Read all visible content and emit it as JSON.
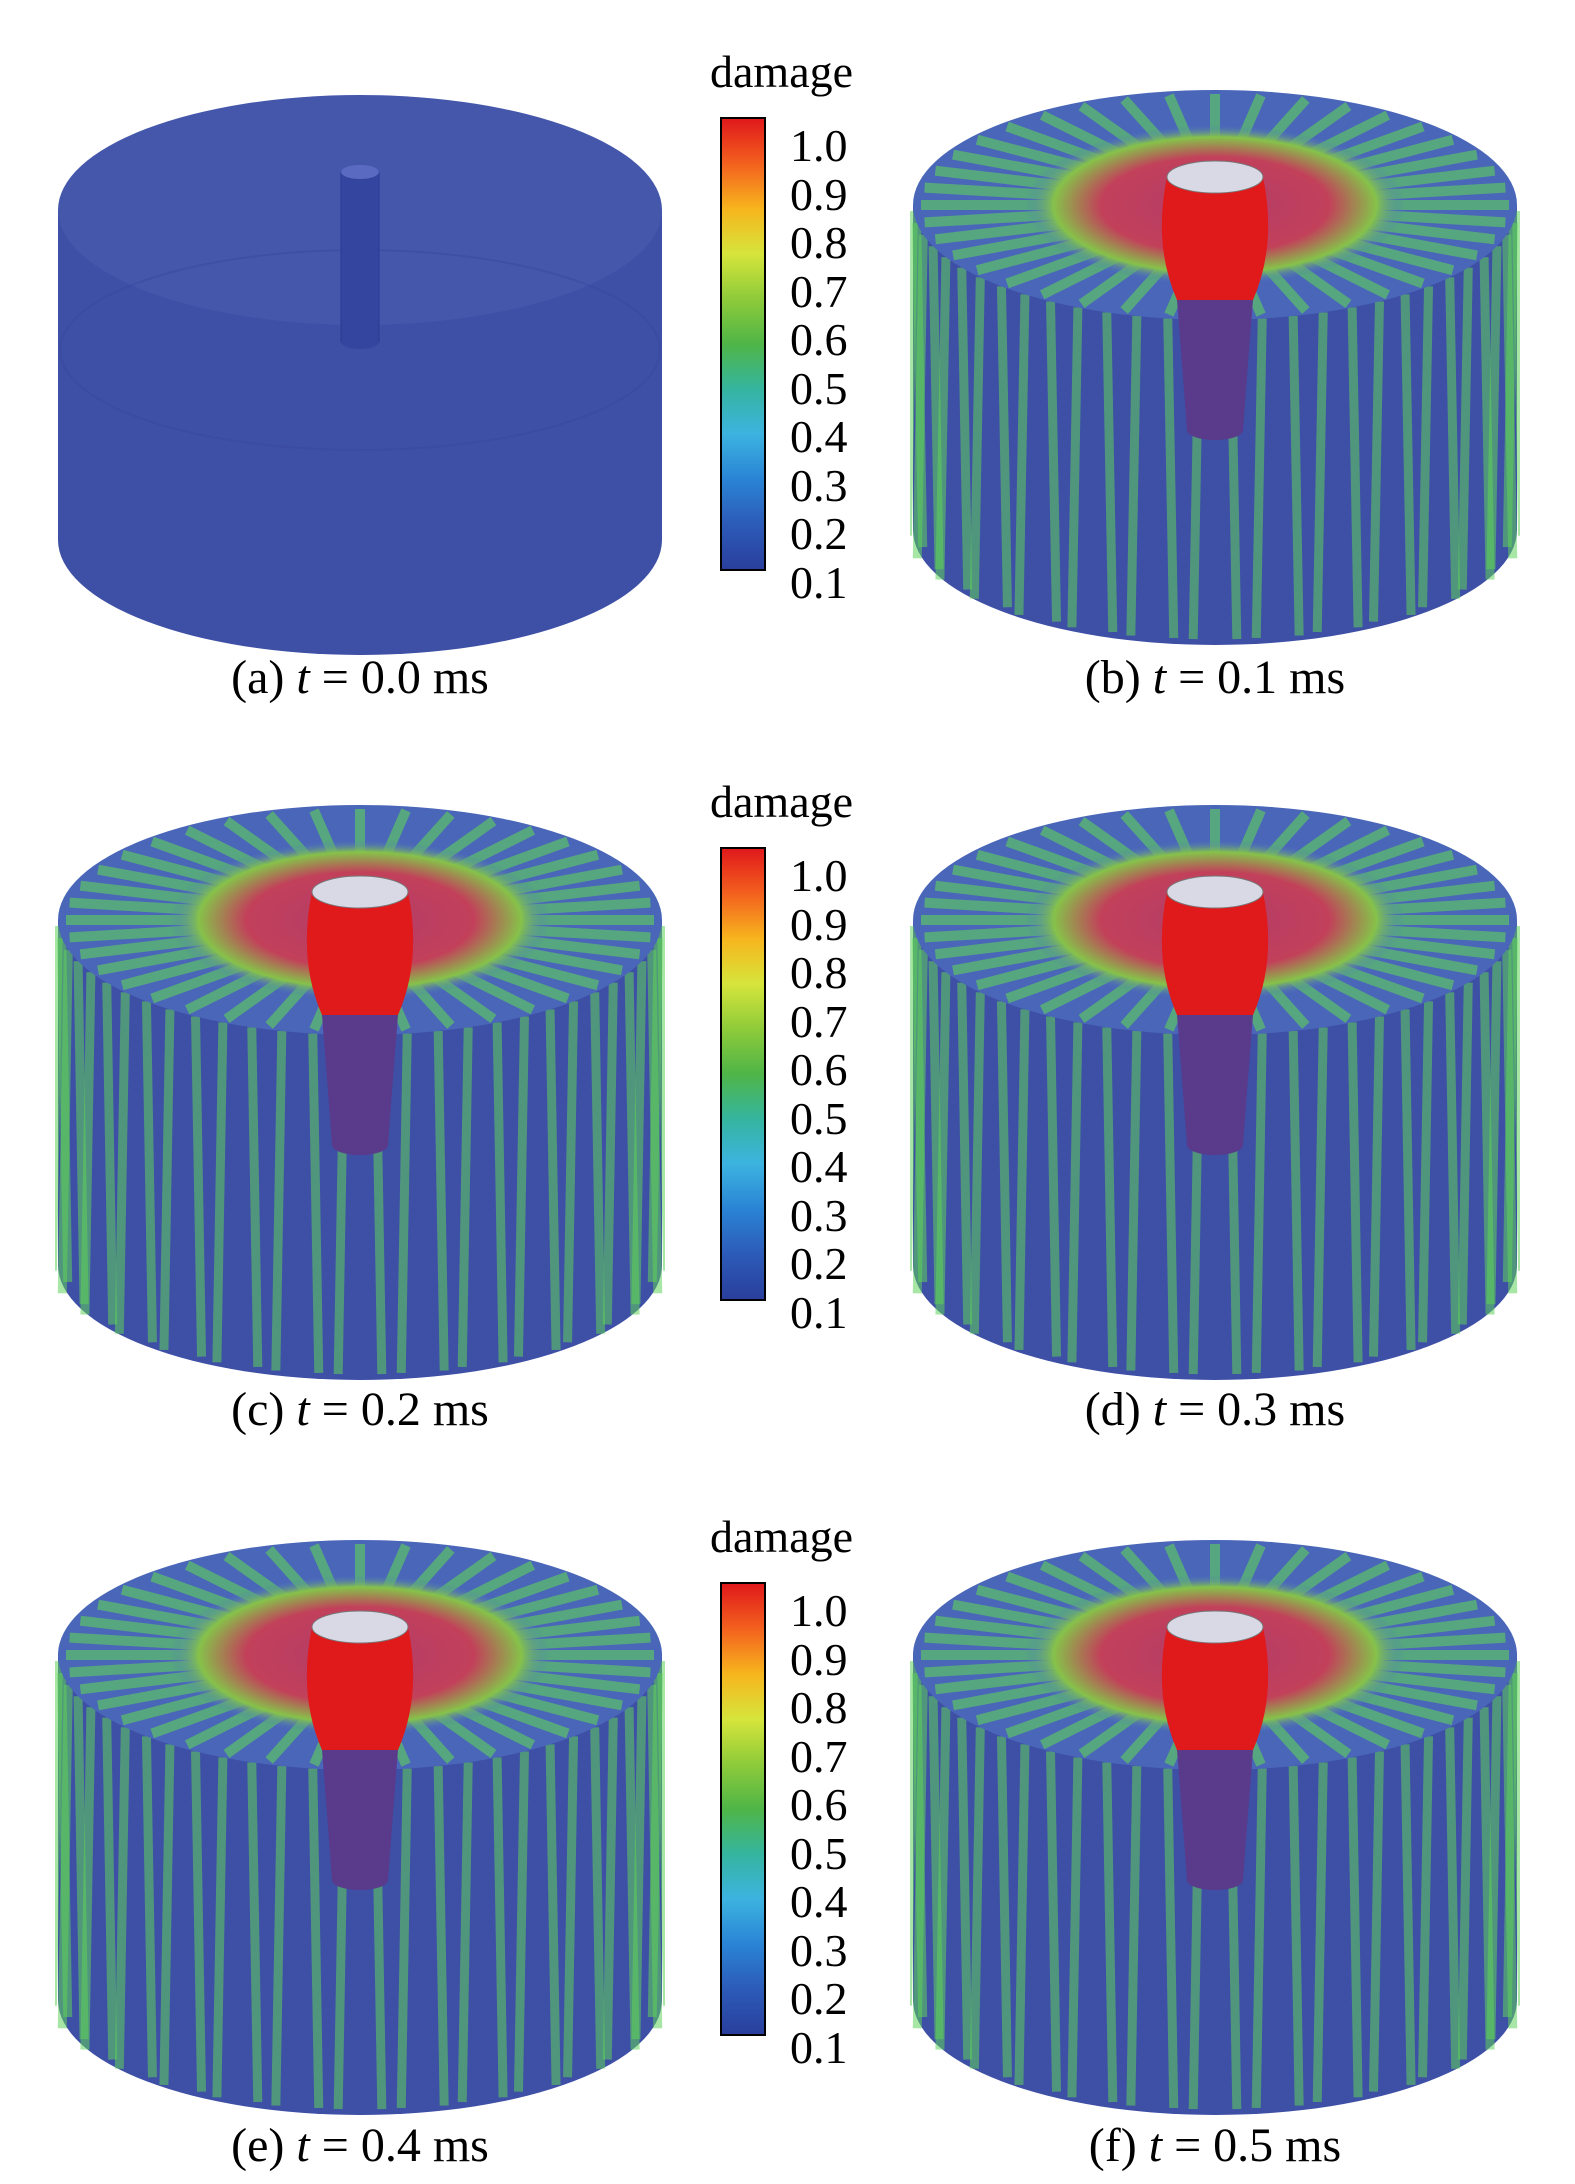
{
  "legend": {
    "title": "damage",
    "ticks": [
      "1.0",
      "0.9",
      "0.8",
      "0.7",
      "0.6",
      "0.5",
      "0.4",
      "0.3",
      "0.2",
      "0.1"
    ]
  },
  "panels": [
    {
      "label": "(a)",
      "var": "t",
      "eq": "= 0.0 ms",
      "damage_state": "none"
    },
    {
      "label": "(b)",
      "var": "t",
      "eq": "= 0.1 ms",
      "damage_state": "developing"
    },
    {
      "label": "(c)",
      "var": "t",
      "eq": "= 0.2 ms",
      "damage_state": "developed"
    },
    {
      "label": "(d)",
      "var": "t",
      "eq": "= 0.3 ms",
      "damage_state": "developed"
    },
    {
      "label": "(e)",
      "var": "t",
      "eq": "= 0.4 ms",
      "damage_state": "developed"
    },
    {
      "label": "(f)",
      "var": "t",
      "eq": "= 0.5 ms",
      "damage_state": "developed"
    }
  ],
  "colors": {
    "intact": "#3e4fa6",
    "high_damage": "#e0191b",
    "crack": "#5fd25a"
  }
}
